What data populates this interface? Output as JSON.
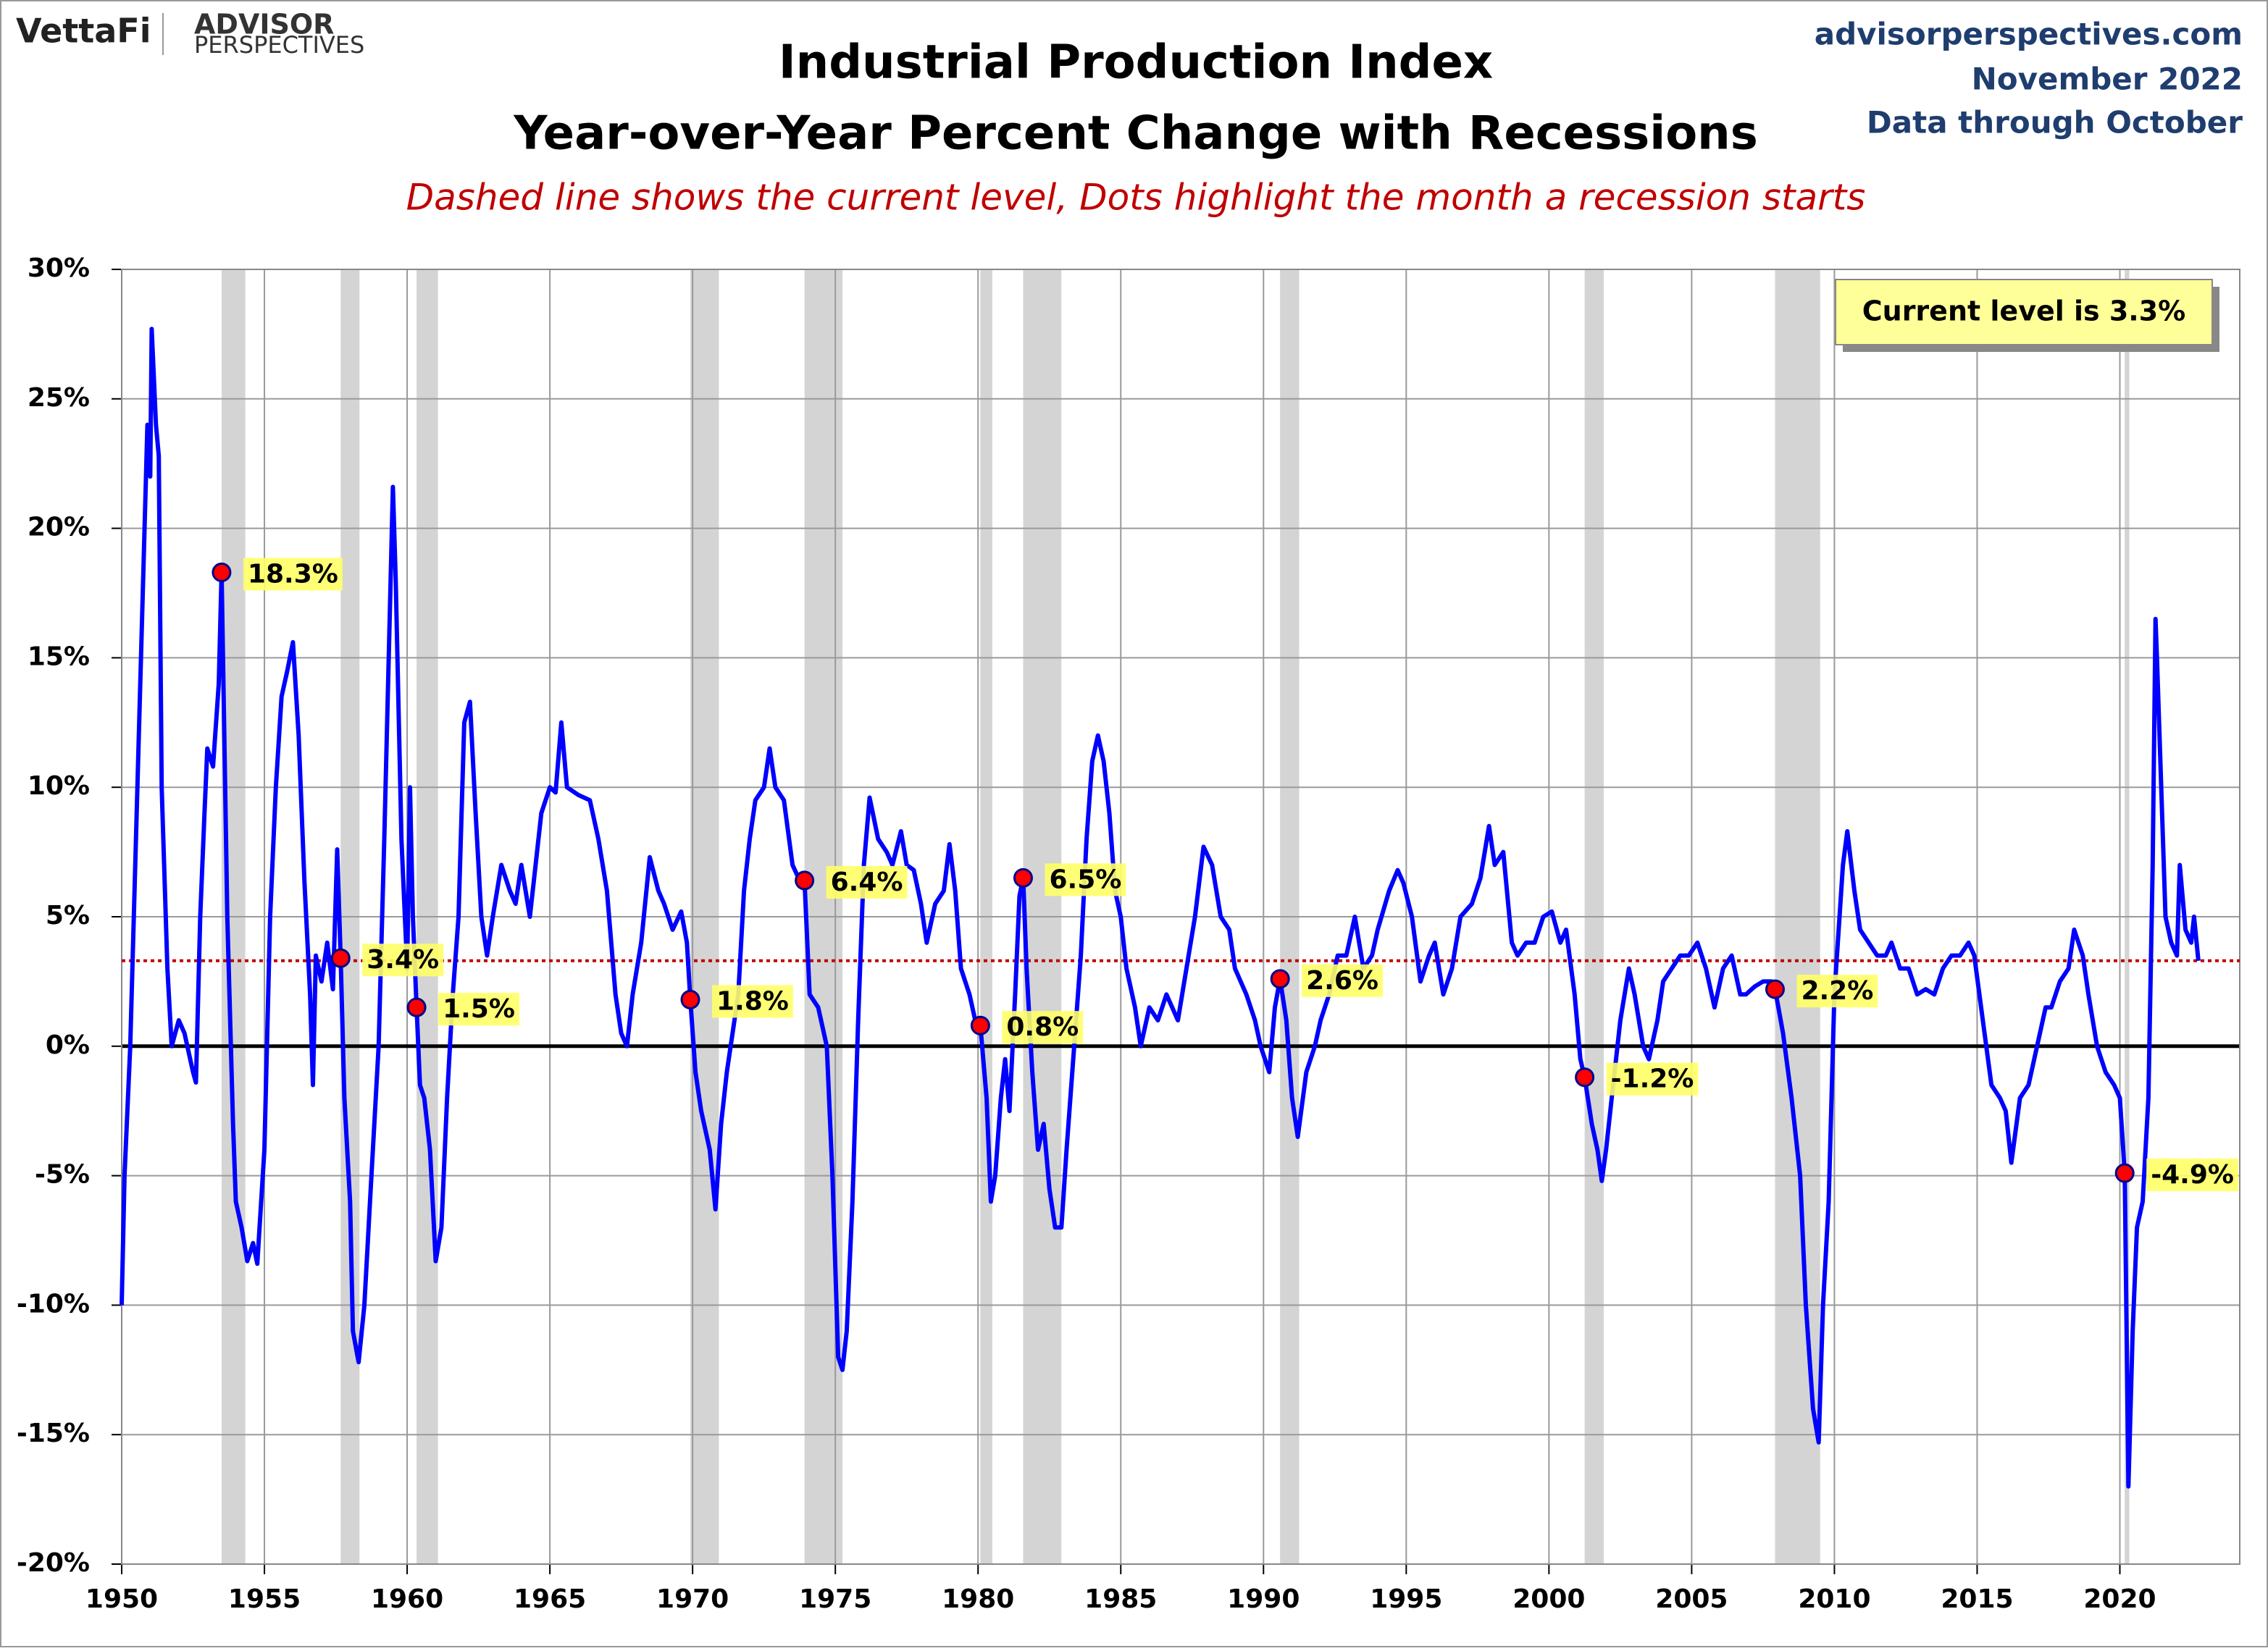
{
  "chart_data": {
    "type": "line",
    "title": "Industrial Production Index",
    "title_line2": "Year-over-Year Percent Change with Recessions",
    "subtitle": "Dashed line shows the current level, Dots highlight the month a recession starts",
    "logo_left": "VettaFi",
    "logo_right_top": "ADVISOR",
    "logo_right_bottom": "PERSPECTIVES",
    "source": "advisorperspectives.com",
    "date": "November 2022",
    "data_note": "Data through October",
    "annotation": "Current level is 3.3%",
    "current_level": 3.3,
    "current_level_color": "#c00000",
    "xlim": [
      1950,
      2024.2
    ],
    "ylim": [
      -20,
      30
    ],
    "xticks": [
      1950,
      1955,
      1960,
      1965,
      1970,
      1975,
      1980,
      1985,
      1990,
      1995,
      2000,
      2005,
      2010,
      2015,
      2020
    ],
    "yticks": [
      {
        "value": -20,
        "label": "-20%"
      },
      {
        "value": -15,
        "label": "-15%"
      },
      {
        "value": -10,
        "label": "-10%"
      },
      {
        "value": -5,
        "label": "-5%"
      },
      {
        "value": 0,
        "label": "0%"
      },
      {
        "value": 5,
        "label": "5%"
      },
      {
        "value": 10,
        "label": "10%"
      },
      {
        "value": 15,
        "label": "15%"
      },
      {
        "value": 20,
        "label": "20%"
      },
      {
        "value": 25,
        "label": "25%"
      },
      {
        "value": 30,
        "label": "30%"
      }
    ],
    "grid": true,
    "recession_color": "#d4d4d4",
    "recessions": [
      [
        1953.5,
        1954.33
      ],
      [
        1957.67,
        1958.33
      ],
      [
        1960.33,
        1961.08
      ],
      [
        1969.92,
        1970.92
      ],
      [
        1973.92,
        1975.25
      ],
      [
        1980.08,
        1980.5
      ],
      [
        1981.58,
        1982.92
      ],
      [
        1990.58,
        1991.25
      ],
      [
        2001.25,
        2001.92
      ],
      [
        2007.92,
        2009.5
      ],
      [
        2020.17,
        2020.33
      ]
    ],
    "recession_starts": {
      "color": "#ff0000",
      "x": [
        1953.5,
        1957.67,
        1960.33,
        1969.92,
        1973.92,
        1980.08,
        1981.58,
        1990.58,
        2001.25,
        2007.92,
        2020.17
      ],
      "values": [
        18.3,
        3.4,
        1.5,
        1.8,
        6.4,
        0.8,
        6.5,
        2.6,
        -1.2,
        2.2,
        -4.9
      ],
      "value_labels": [
        "18.3%",
        "3.4%",
        "1.5%",
        "1.8%",
        "6.4%",
        "0.8%",
        "6.5%",
        "2.6%",
        "-1.2%",
        "2.2%",
        "-4.9%"
      ]
    },
    "series": [
      {
        "name": "Industrial Production YoY",
        "color": "#0000ff",
        "x": [
          1950.0,
          1950.1,
          1950.3,
          1950.5,
          1950.75,
          1950.9,
          1951.0,
          1951.05,
          1951.2,
          1951.3,
          1951.4,
          1951.6,
          1951.75,
          1952.0,
          1952.2,
          1952.5,
          1952.6,
          1952.75,
          1952.9,
          1953.0,
          1953.2,
          1953.4,
          1953.5,
          1953.7,
          1953.9,
          1954.0,
          1954.2,
          1954.4,
          1954.6,
          1954.75,
          1955.0,
          1955.2,
          1955.4,
          1955.6,
          1955.8,
          1956.0,
          1956.2,
          1956.4,
          1956.6,
          1956.7,
          1956.8,
          1957.0,
          1957.2,
          1957.4,
          1957.55,
          1957.67,
          1957.8,
          1958.0,
          1958.1,
          1958.3,
          1958.5,
          1958.7,
          1959.0,
          1959.2,
          1959.4,
          1959.5,
          1959.6,
          1959.8,
          1960.0,
          1960.1,
          1960.2,
          1960.33,
          1960.45,
          1960.6,
          1960.8,
          1961.0,
          1961.2,
          1961.4,
          1961.6,
          1961.8,
          1962.0,
          1962.2,
          1962.4,
          1962.6,
          1962.8,
          1963.0,
          1963.3,
          1963.6,
          1963.8,
          1964.0,
          1964.3,
          1964.5,
          1964.7,
          1965.0,
          1965.2,
          1965.4,
          1965.6,
          1966.0,
          1966.4,
          1966.7,
          1967.0,
          1967.3,
          1967.5,
          1967.7,
          1967.9,
          1968.2,
          1968.5,
          1968.8,
          1969.0,
          1969.3,
          1969.6,
          1969.8,
          1969.92,
          1970.1,
          1970.3,
          1970.6,
          1970.8,
          1971.0,
          1971.2,
          1971.4,
          1971.6,
          1971.8,
          1972.0,
          1972.2,
          1972.5,
          1972.7,
          1972.9,
          1973.2,
          1973.5,
          1973.75,
          1973.92,
          1974.1,
          1974.4,
          1974.7,
          1974.9,
          1975.1,
          1975.25,
          1975.4,
          1975.6,
          1975.8,
          1976.0,
          1976.2,
          1976.5,
          1976.8,
          1977.0,
          1977.3,
          1977.5,
          1977.75,
          1978.0,
          1978.2,
          1978.5,
          1978.8,
          1979.0,
          1979.2,
          1979.4,
          1979.7,
          1979.9,
          1980.08,
          1980.3,
          1980.45,
          1980.6,
          1980.8,
          1980.95,
          1981.1,
          1981.3,
          1981.45,
          1981.58,
          1981.7,
          1981.9,
          1982.1,
          1982.3,
          1982.5,
          1982.7,
          1982.92,
          1983.1,
          1983.3,
          1983.6,
          1983.8,
          1984.0,
          1984.2,
          1984.4,
          1984.6,
          1984.8,
          1985.0,
          1985.2,
          1985.5,
          1985.7,
          1986.0,
          1986.3,
          1986.6,
          1987.0,
          1987.3,
          1987.6,
          1987.9,
          1988.2,
          1988.5,
          1988.8,
          1989.0,
          1989.4,
          1989.7,
          1989.9,
          1990.2,
          1990.4,
          1990.58,
          1990.8,
          1991.0,
          1991.2,
          1991.5,
          1991.8,
          1992.0,
          1992.3,
          1992.6,
          1992.9,
          1993.2,
          1993.5,
          1993.8,
          1994.0,
          1994.4,
          1994.7,
          1994.9,
          1995.2,
          1995.5,
          1995.8,
          1996.0,
          1996.3,
          1996.6,
          1996.9,
          1997.3,
          1997.6,
          1997.9,
          1998.1,
          1998.4,
          1998.7,
          1998.9,
          1999.2,
          1999.5,
          1999.8,
          2000.1,
          2000.4,
          2000.6,
          2000.9,
          2001.1,
          2001.25,
          2001.5,
          2001.7,
          2001.85,
          2002.0,
          2002.2,
          2002.5,
          2002.8,
          2003.0,
          2003.3,
          2003.5,
          2003.8,
          2004.0,
          2004.3,
          2004.6,
          2004.9,
          2005.2,
          2005.5,
          2005.8,
          2006.1,
          2006.4,
          2006.7,
          2006.9,
          2007.2,
          2007.5,
          2007.8,
          2007.92,
          2008.2,
          2008.5,
          2008.8,
          2009.0,
          2009.25,
          2009.45,
          2009.6,
          2009.8,
          2010.0,
          2010.3,
          2010.45,
          2010.7,
          2010.9,
          2011.2,
          2011.5,
          2011.8,
          2012.0,
          2012.3,
          2012.6,
          2012.9,
          2013.2,
          2013.5,
          2013.8,
          2014.1,
          2014.4,
          2014.7,
          2014.9,
          2015.2,
          2015.5,
          2015.8,
          2016.0,
          2016.2,
          2016.5,
          2016.8,
          2017.1,
          2017.4,
          2017.6,
          2017.9,
          2018.2,
          2018.4,
          2018.7,
          2018.9,
          2019.2,
          2019.5,
          2019.8,
          2020.0,
          2020.17,
          2020.3,
          2020.45,
          2020.6,
          2020.8,
          2020.95,
          2021.0,
          2021.15,
          2021.25,
          2021.3,
          2021.45,
          2021.6,
          2021.8,
          2022.0,
          2022.1,
          2022.3,
          2022.5,
          2022.6,
          2022.75
        ],
        "values": [
          -10,
          -5,
          0,
          8,
          18,
          24,
          22,
          27.7,
          24,
          22.8,
          10,
          3,
          0,
          1,
          0.5,
          -1,
          -1.4,
          5,
          9,
          11.5,
          10.8,
          14,
          18.3,
          5,
          -3,
          -6,
          -7,
          -8.3,
          -7.6,
          -8.4,
          -4,
          5,
          10,
          13.5,
          14.5,
          15.6,
          12,
          6.4,
          2,
          -1.5,
          3.5,
          2.5,
          4,
          2.2,
          7.6,
          3.4,
          -2,
          -6,
          -11,
          -12.2,
          -10,
          -6,
          0,
          8,
          17,
          21.6,
          18,
          8,
          3,
          10,
          5,
          1.5,
          -1.5,
          -2,
          -4,
          -8.3,
          -7,
          -2,
          2,
          5,
          12.5,
          13.3,
          9,
          5,
          3.5,
          5,
          7,
          6,
          5.5,
          7,
          5,
          7,
          9,
          10,
          9.8,
          12.5,
          10,
          9.7,
          9.5,
          8,
          6,
          2,
          0.5,
          0,
          2,
          4,
          7.3,
          6,
          5.5,
          4.5,
          5.2,
          4,
          1.8,
          -1,
          -2.5,
          -4,
          -6.3,
          -3,
          -1,
          0.5,
          2,
          6,
          8,
          9.5,
          10,
          11.5,
          10,
          9.5,
          7,
          6.4,
          6.4,
          2,
          1.5,
          0,
          -5,
          -12,
          -12.5,
          -11,
          -6,
          1,
          7,
          9.6,
          8,
          7.5,
          7,
          8.3,
          7,
          6.8,
          5.5,
          4,
          5.5,
          6,
          7.8,
          6,
          3,
          2,
          1,
          0.8,
          -2,
          -6,
          -5,
          -2,
          -0.5,
          -2.5,
          2,
          5.8,
          6.5,
          3,
          -1,
          -4,
          -3,
          -5.5,
          -7,
          -7,
          -4,
          -1,
          3.5,
          8,
          11,
          12,
          11,
          9,
          6,
          5,
          3,
          1.5,
          0,
          1.5,
          1,
          2,
          1,
          3,
          5,
          7.7,
          7,
          5,
          4.5,
          3,
          2,
          1,
          0,
          -1,
          1.5,
          2.6,
          1,
          -2,
          -3.5,
          -1,
          0,
          1,
          2,
          3.5,
          3.5,
          5,
          3,
          3.5,
          4.5,
          6,
          6.8,
          6.3,
          5,
          2.5,
          3.5,
          4,
          2,
          3,
          5,
          5.5,
          6.5,
          8.5,
          7,
          7.5,
          4,
          3.5,
          4,
          4,
          5,
          5.2,
          4,
          4.5,
          2,
          -0.5,
          -1.2,
          -3,
          -4,
          -5.2,
          -4,
          -2,
          1,
          3,
          2,
          0,
          -0.5,
          1,
          2.5,
          3,
          3.5,
          3.5,
          4,
          3,
          1.5,
          3,
          3.5,
          2,
          2,
          2.3,
          2.5,
          2.5,
          2.2,
          0.5,
          -2,
          -5,
          -10,
          -14,
          -15.3,
          -10,
          -6,
          2,
          7,
          8.3,
          6,
          4.5,
          4,
          3.5,
          3.5,
          4,
          3,
          3,
          2,
          2.2,
          2,
          3,
          3.5,
          3.5,
          4,
          3.5,
          1,
          -1.5,
          -2,
          -2.5,
          -4.5,
          -2,
          -1.5,
          0,
          1.5,
          1.5,
          2.5,
          3,
          4.5,
          3.5,
          2,
          0,
          -1,
          -1.5,
          -2,
          -4.9,
          -17,
          -11,
          -7,
          -6,
          -3,
          -2,
          7,
          16.5,
          15,
          10,
          5,
          4,
          3.5,
          7,
          4.5,
          4,
          5,
          3.3
        ]
      }
    ]
  }
}
